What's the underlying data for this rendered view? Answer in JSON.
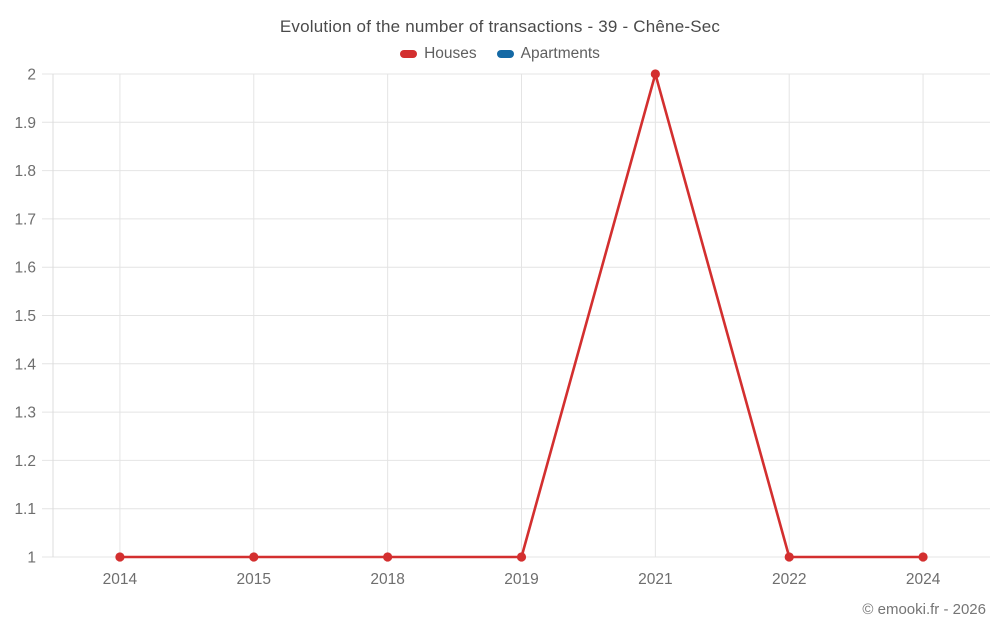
{
  "footer": "© emooki.fr - 2026",
  "chart_data": {
    "type": "line",
    "title": "Evolution of the number of transactions - 39 - Chêne-Sec",
    "categories": [
      "2014",
      "2015",
      "2018",
      "2019",
      "2021",
      "2022",
      "2024"
    ],
    "series": [
      {
        "name": "Houses",
        "color": "#d32f2f",
        "values": [
          1,
          1,
          1,
          1,
          2,
          1,
          1
        ]
      },
      {
        "name": "Apartments",
        "color": "#1469a5",
        "values": []
      }
    ],
    "ylim": [
      1,
      2
    ],
    "ytick_step": 0.1,
    "grid": true,
    "legend_position": "top",
    "colors": {
      "grid": "#e4e4e4",
      "axis": "#dcdcdc",
      "tick_label": "#6e6e6e",
      "title": "#4a4a4a"
    }
  }
}
